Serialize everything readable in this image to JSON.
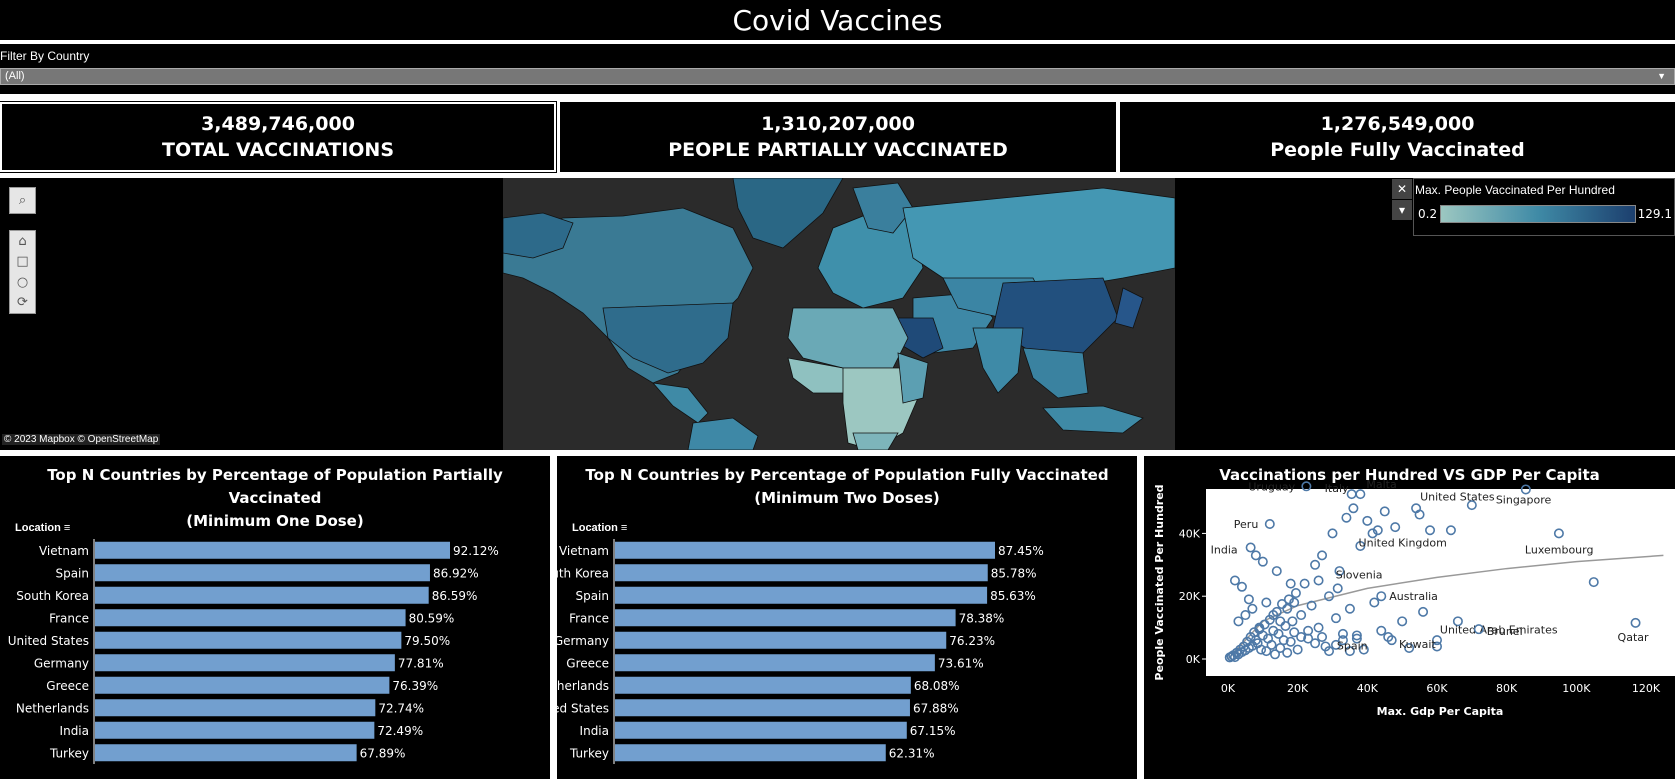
{
  "header": {
    "title": "Covid Vaccines"
  },
  "filter": {
    "label": "Filter By Country",
    "value": "(All)"
  },
  "kpis": [
    {
      "value": "3,489,746,000",
      "label": "TOTAL VACCINATIONS"
    },
    {
      "value": "1,310,207,000",
      "label": "PEOPLE PARTIALLY VACCINATED"
    },
    {
      "value": "1,276,549,000",
      "label": "People Fully Vaccinated"
    }
  ],
  "map": {
    "attribution": "© 2023 Mapbox  © OpenStreetMap",
    "legend": {
      "title": "Max. People Vaccinated Per Hundred",
      "min": "0.2",
      "max": "129.1",
      "colors": [
        "#9cc7c1",
        "#3f8aa6",
        "#1c3f6e"
      ]
    }
  },
  "chart_data": [
    {
      "type": "bar",
      "title": "Top N Countries by Percentage of Population Partially Vaccinated (Minimum One Dose)",
      "title_lines": [
        "Top N Countries by Percentage of Population Partially Vaccinated",
        "(Minimum One Dose)"
      ],
      "row_header": "Location",
      "categories": [
        "Vietnam",
        "Spain",
        "South Korea",
        "France",
        "United States",
        "Germany",
        "Greece",
        "Netherlands",
        "India",
        "Turkey"
      ],
      "values": [
        92.12,
        86.92,
        86.59,
        80.59,
        79.5,
        77.81,
        76.39,
        72.74,
        72.49,
        67.89
      ],
      "labels": [
        "92.12%",
        "86.92%",
        "86.59%",
        "80.59%",
        "79.50%",
        "77.81%",
        "76.39%",
        "72.74%",
        "72.49%",
        "67.89%"
      ],
      "color": "#729fcf"
    },
    {
      "type": "bar",
      "title": "Top N Countries by Percentage of Population Fully Vaccinated (Minimum Two Doses)",
      "title_lines": [
        "Top N Countries by Percentage of Population Fully Vaccinated",
        "(Minimum Two Doses)"
      ],
      "row_header": "Location",
      "categories": [
        "Vietnam",
        "South Korea",
        "Spain",
        "France",
        "Germany",
        "Greece",
        "Netherlands",
        "United States",
        "India",
        "Turkey"
      ],
      "values": [
        87.45,
        85.78,
        85.63,
        78.38,
        76.23,
        73.61,
        68.08,
        67.88,
        67.15,
        62.31
      ],
      "labels": [
        "87.45%",
        "85.78%",
        "85.63%",
        "78.38%",
        "76.23%",
        "73.61%",
        "68.08%",
        "67.88%",
        "67.15%",
        "62.31%"
      ],
      "color": "#729fcf"
    },
    {
      "type": "scatter",
      "title": "Vaccinations per Hundred VS GDP Per Capita",
      "xlabel": "Max. Gdp Per Capita",
      "ylabel": "People Vaccinated Per Hundred",
      "xlim": [
        0,
        120000
      ],
      "ylim": [
        0,
        50000
      ],
      "xticks": [
        "0K",
        "20K",
        "40K",
        "60K",
        "80K",
        "100K",
        "120K"
      ],
      "yticks": [
        "0K",
        "20K",
        "40K"
      ],
      "color": "#4e79a7",
      "trend": [
        [
          0,
          0
        ],
        [
          10000,
          12000
        ],
        [
          20000,
          17000
        ],
        [
          40000,
          22500
        ],
        [
          60000,
          26000
        ],
        [
          80000,
          28800
        ],
        [
          100000,
          31000
        ],
        [
          125000,
          33000
        ]
      ],
      "labeled_points": [
        {
          "name": "Uruguay",
          "x": 22500,
          "y": 55000
        },
        {
          "name": "Italy",
          "x": 35500,
          "y": 52500
        },
        {
          "name": "Malta",
          "x": 38000,
          "y": 52500
        },
        {
          "name": "United States",
          "x": 54000,
          "y": 48000
        },
        {
          "name": "Singapore",
          "x": 85500,
          "y": 54000
        },
        {
          "name": "Peru",
          "x": 12000,
          "y": 43000
        },
        {
          "name": "India",
          "x": 6500,
          "y": 35500
        },
        {
          "name": "United Kingdom",
          "x": 41500,
          "y": 40000
        },
        {
          "name": "Luxembourg",
          "x": 95000,
          "y": 40000
        },
        {
          "name": "Slovenia",
          "x": 31500,
          "y": 22500
        },
        {
          "name": "Australia",
          "x": 44000,
          "y": 20000
        },
        {
          "name": "Spain",
          "x": 37000,
          "y": 7500
        },
        {
          "name": "United Arab Emirates",
          "x": 66000,
          "y": 12000
        },
        {
          "name": "Kuwait",
          "x": 60000,
          "y": 6000
        },
        {
          "name": "Brunei",
          "x": 72000,
          "y": 9500
        },
        {
          "name": "Qatar",
          "x": 117000,
          "y": 11500
        },
        {
          "name": "",
          "x": 105000,
          "y": 24500
        }
      ],
      "other_points": [
        [
          500,
          500
        ],
        [
          1000,
          800
        ],
        [
          1500,
          1200
        ],
        [
          2000,
          600
        ],
        [
          2500,
          2000
        ],
        [
          3000,
          1500
        ],
        [
          3500,
          3000
        ],
        [
          4000,
          2200
        ],
        [
          4500,
          4000
        ],
        [
          5000,
          2800
        ],
        [
          5500,
          5500
        ],
        [
          6000,
          3500
        ],
        [
          6500,
          7000
        ],
        [
          7000,
          4200
        ],
        [
          7500,
          8500
        ],
        [
          8000,
          6000
        ],
        [
          8500,
          5000
        ],
        [
          9000,
          9500
        ],
        [
          9500,
          3000
        ],
        [
          10000,
          7500
        ],
        [
          10500,
          11000
        ],
        [
          11000,
          2500
        ],
        [
          11500,
          6500
        ],
        [
          12000,
          12500
        ],
        [
          12500,
          4500
        ],
        [
          13000,
          9000
        ],
        [
          13500,
          1500
        ],
        [
          14000,
          15000
        ],
        [
          14500,
          8000
        ],
        [
          15000,
          3500
        ],
        [
          15500,
          17500
        ],
        [
          16000,
          6000
        ],
        [
          16500,
          10500
        ],
        [
          17000,
          2000
        ],
        [
          17500,
          19000
        ],
        [
          18000,
          5500
        ],
        [
          18500,
          12000
        ],
        [
          19000,
          8500
        ],
        [
          19500,
          21000
        ],
        [
          20000,
          3000
        ],
        [
          21000,
          14000
        ],
        [
          22000,
          24000
        ],
        [
          23000,
          6500
        ],
        [
          24000,
          17000
        ],
        [
          25000,
          30000
        ],
        [
          26000,
          10000
        ],
        [
          27000,
          33000
        ],
        [
          28000,
          4000
        ],
        [
          29000,
          20000
        ],
        [
          30000,
          40000
        ],
        [
          31000,
          13000
        ],
        [
          32000,
          28000
        ],
        [
          33000,
          8000
        ],
        [
          34000,
          45000
        ],
        [
          35000,
          16000
        ],
        [
          36000,
          48000
        ],
        [
          38000,
          36000
        ],
        [
          39000,
          3000
        ],
        [
          40000,
          44000
        ],
        [
          42000,
          18000
        ],
        [
          43000,
          41000
        ],
        [
          45000,
          47000
        ],
        [
          46000,
          7000
        ],
        [
          48000,
          42000
        ],
        [
          50000,
          12000
        ],
        [
          52000,
          3500
        ],
        [
          55000,
          46000
        ],
        [
          56000,
          15000
        ],
        [
          58000,
          41000
        ],
        [
          60000,
          4000
        ],
        [
          64000,
          41000
        ],
        [
          70000,
          49000
        ],
        [
          2000,
          25000
        ],
        [
          4000,
          23000
        ],
        [
          6000,
          19000
        ],
        [
          8000,
          33000
        ],
        [
          10000,
          31000
        ],
        [
          14000,
          28000
        ],
        [
          18000,
          24000
        ],
        [
          26000,
          25000
        ],
        [
          3000,
          12000
        ],
        [
          5000,
          14000
        ],
        [
          7000,
          16000
        ],
        [
          9000,
          10000
        ],
        [
          11000,
          18000
        ],
        [
          13000,
          14000
        ],
        [
          15000,
          12000
        ],
        [
          17000,
          16000
        ],
        [
          19000,
          18000
        ],
        [
          21000,
          7000
        ],
        [
          23000,
          9000
        ],
        [
          25000,
          5000
        ],
        [
          27000,
          7000
        ],
        [
          29000,
          2500
        ],
        [
          31000,
          4500
        ],
        [
          33000,
          6000
        ],
        [
          35000,
          2500
        ],
        [
          37000,
          6500
        ],
        [
          44000,
          9000
        ],
        [
          47000,
          6000
        ]
      ]
    }
  ]
}
